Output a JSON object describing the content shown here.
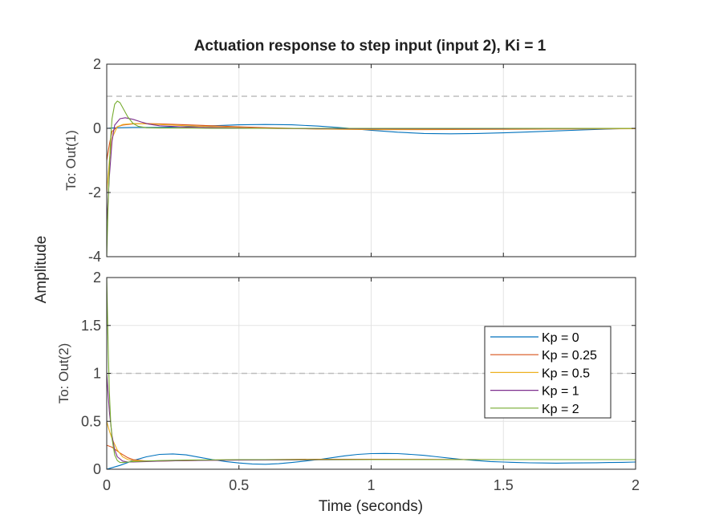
{
  "chart_data": {
    "type": "line",
    "title": "Actuation response to step input (input 2), Ki = 1",
    "xlabel": "Time (seconds)",
    "ylabel": "Amplitude",
    "xlim": [
      0,
      2
    ],
    "xticks": [
      0,
      0.5,
      1,
      1.5,
      2
    ],
    "xtick_labels": [
      "0",
      "0.5",
      "1",
      "1.5",
      "2"
    ],
    "grid": true,
    "legend": {
      "placement": "right",
      "entries": [
        "Kp = 0",
        "Kp = 0.25",
        "Kp = 0.5",
        "Kp = 1",
        "Kp = 2"
      ]
    },
    "colors": [
      "#0072BD",
      "#D95319",
      "#EDB120",
      "#7E2F8E",
      "#77AC30"
    ],
    "reference_color": "#BDBDBD",
    "subplots": [
      {
        "ylabel": "To: Out(1)",
        "ylim": [
          -4,
          2
        ],
        "yticks": [
          -4,
          -2,
          0,
          2
        ],
        "ytick_labels": [
          "-4",
          "-2",
          "0",
          "2"
        ],
        "reference_line": 1,
        "series": [
          {
            "name": "Kp = 0",
            "x": [
              0,
              0.02,
              0.05,
              0.1,
              0.2,
              0.3,
              0.4,
              0.5,
              0.6,
              0.7,
              0.8,
              0.9,
              1.0,
              1.1,
              1.2,
              1.3,
              1.4,
              1.5,
              1.6,
              1.7,
              1.8,
              1.9,
              2.0
            ],
            "y": [
              0,
              0.01,
              0.02,
              0.03,
              0.03,
              0.05,
              0.08,
              0.11,
              0.12,
              0.11,
              0.07,
              0.01,
              -0.06,
              -0.12,
              -0.16,
              -0.17,
              -0.16,
              -0.14,
              -0.11,
              -0.08,
              -0.05,
              -0.02,
              0.0
            ]
          },
          {
            "name": "Kp = 0.25",
            "x": [
              0,
              0.01,
              0.02,
              0.04,
              0.06,
              0.1,
              0.15,
              0.2,
              0.3,
              0.4,
              0.5,
              0.6,
              0.8,
              1.0,
              1.2,
              1.5,
              2.0
            ],
            "y": [
              -1.0,
              -0.5,
              -0.1,
              0.05,
              0.1,
              0.14,
              0.15,
              0.14,
              0.11,
              0.08,
              0.05,
              0.02,
              -0.02,
              -0.04,
              -0.04,
              -0.03,
              -0.01
            ]
          },
          {
            "name": "Kp = 0.5",
            "x": [
              0,
              0.01,
              0.02,
              0.04,
              0.06,
              0.1,
              0.15,
              0.2,
              0.3,
              0.4,
              0.6,
              0.8,
              1.0,
              1.5,
              2.0
            ],
            "y": [
              -2.0,
              -1.0,
              -0.3,
              0.05,
              0.12,
              0.15,
              0.14,
              0.12,
              0.08,
              0.05,
              0.0,
              -0.02,
              -0.03,
              -0.02,
              -0.01
            ]
          },
          {
            "name": "Kp = 1",
            "x": [
              0,
              0.01,
              0.02,
              0.03,
              0.05,
              0.07,
              0.1,
              0.13,
              0.16,
              0.2,
              0.3,
              0.4,
              0.6,
              0.8,
              1.0,
              1.5,
              2.0
            ],
            "y": [
              -3.0,
              -1.5,
              -0.4,
              0.1,
              0.3,
              0.33,
              0.28,
              0.2,
              0.13,
              0.08,
              0.04,
              0.02,
              0.0,
              -0.01,
              -0.01,
              -0.01,
              0.0
            ]
          },
          {
            "name": "Kp = 2",
            "x": [
              0,
              0.005,
              0.01,
              0.015,
              0.02,
              0.03,
              0.04,
              0.05,
              0.06,
              0.08,
              0.1,
              0.12,
              0.15,
              0.2,
              0.3,
              0.4,
              0.6,
              1.0,
              1.5,
              2.0
            ],
            "y": [
              -4.0,
              -2.5,
              -1.2,
              -0.3,
              0.3,
              0.75,
              0.85,
              0.8,
              0.65,
              0.35,
              0.15,
              0.06,
              0.02,
              0.01,
              0.01,
              0.0,
              0.0,
              0.0,
              0.0,
              0.0
            ]
          }
        ]
      },
      {
        "ylabel": "To: Out(2)",
        "ylim": [
          0,
          2
        ],
        "yticks": [
          0,
          0.5,
          1,
          1.5,
          2
        ],
        "ytick_labels": [
          "0",
          "0.5",
          "1",
          "1.5",
          "2"
        ],
        "reference_line": 1,
        "series": [
          {
            "name": "Kp = 0",
            "x": [
              0,
              0.05,
              0.1,
              0.15,
              0.2,
              0.25,
              0.3,
              0.35,
              0.4,
              0.45,
              0.5,
              0.55,
              0.6,
              0.65,
              0.7,
              0.75,
              0.8,
              0.85,
              0.9,
              0.95,
              1.0,
              1.05,
              1.1,
              1.15,
              1.2,
              1.25,
              1.3,
              1.35,
              1.4,
              1.45,
              1.5,
              1.55,
              1.6,
              1.65,
              1.7,
              1.75,
              1.8,
              1.85,
              1.9,
              1.95,
              2.0
            ],
            "y": [
              0.0,
              0.04,
              0.09,
              0.13,
              0.155,
              0.16,
              0.15,
              0.125,
              0.1,
              0.08,
              0.065,
              0.055,
              0.052,
              0.058,
              0.07,
              0.085,
              0.1,
              0.12,
              0.14,
              0.155,
              0.163,
              0.165,
              0.163,
              0.155,
              0.145,
              0.13,
              0.115,
              0.1,
              0.09,
              0.08,
              0.075,
              0.07,
              0.067,
              0.065,
              0.064,
              0.065,
              0.066,
              0.068,
              0.07,
              0.072,
              0.075
            ]
          },
          {
            "name": "Kp = 0.25",
            "x": [
              0,
              0.02,
              0.05,
              0.08,
              0.1,
              0.15,
              0.2,
              0.3,
              0.4,
              0.6,
              0.8,
              1.0,
              1.2,
              1.5,
              2.0
            ],
            "y": [
              0.25,
              0.23,
              0.17,
              0.12,
              0.1,
              0.085,
              0.085,
              0.09,
              0.095,
              0.1,
              0.105,
              0.105,
              0.103,
              0.1,
              0.1
            ]
          },
          {
            "name": "Kp = 0.5",
            "x": [
              0,
              0.01,
              0.02,
              0.04,
              0.06,
              0.08,
              0.1,
              0.15,
              0.2,
              0.3,
              0.4,
              0.6,
              0.8,
              1.0,
              1.5,
              2.0
            ],
            "y": [
              0.5,
              0.4,
              0.32,
              0.2,
              0.13,
              0.1,
              0.09,
              0.085,
              0.087,
              0.09,
              0.095,
              0.098,
              0.1,
              0.1,
              0.1,
              0.1
            ]
          },
          {
            "name": "Kp = 1",
            "x": [
              0,
              0.005,
              0.01,
              0.02,
              0.03,
              0.04,
              0.06,
              0.08,
              0.1,
              0.15,
              0.2,
              0.3,
              0.5,
              1.0,
              1.5,
              2.0
            ],
            "y": [
              1.0,
              0.8,
              0.6,
              0.35,
              0.2,
              0.13,
              0.085,
              0.075,
              0.075,
              0.08,
              0.085,
              0.09,
              0.095,
              0.1,
              0.1,
              0.1
            ]
          },
          {
            "name": "Kp = 2",
            "x": [
              0,
              0.003,
              0.006,
              0.01,
              0.015,
              0.02,
              0.03,
              0.04,
              0.05,
              0.06,
              0.08,
              0.1,
              0.15,
              0.2,
              0.3,
              0.5,
              1.0,
              1.5,
              2.0
            ],
            "y": [
              2.0,
              1.6,
              1.2,
              0.8,
              0.5,
              0.32,
              0.15,
              0.09,
              0.07,
              0.07,
              0.075,
              0.08,
              0.085,
              0.09,
              0.095,
              0.1,
              0.1,
              0.1,
              0.1
            ]
          }
        ]
      }
    ]
  }
}
